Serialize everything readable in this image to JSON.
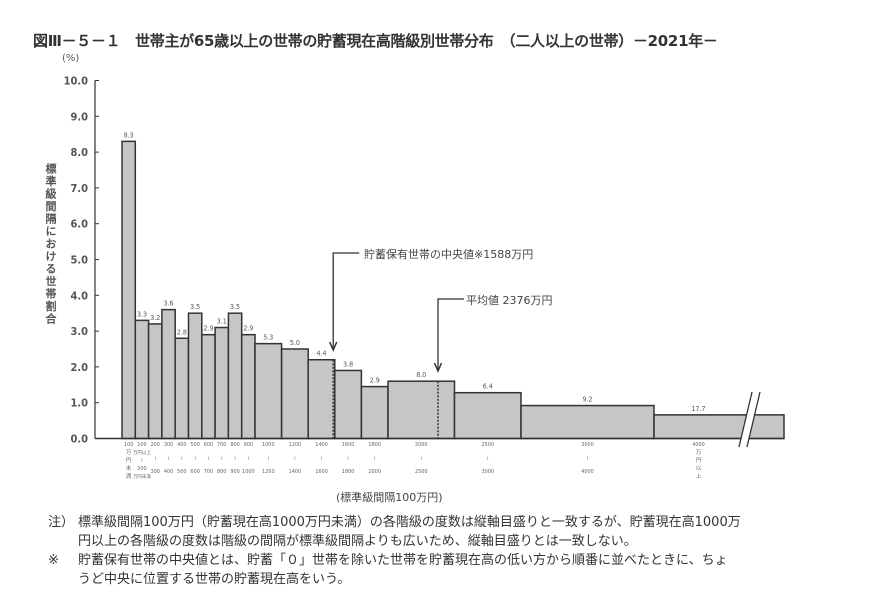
{
  "figure": {
    "title": "図Ⅲ－５－１　世帯主が65歳以上の世帯の貯蓄現在高階級別世帯分布　（二人以上の世帯）－2021年－",
    "y_unit": "(%)",
    "y_axis_label": "標準級間隔における世帯割合",
    "x_axis_label": "(標準級間隔100万円)",
    "annotations": {
      "median": "貯蓄保有世帯の中央値※1588万円",
      "mean": "平均値 2376万円"
    },
    "notes": [
      {
        "marker": "注）",
        "lines": [
          "標準級間隔100万円（貯蓄現在高1000万円未満）の各階級の度数は縦軸目盛りと一致するが、貯蓄現在高1000万",
          "円以上の各階級の度数は階級の間隔が標準級間隔よりも広いため、縦軸目盛りとは一致しない。"
        ]
      },
      {
        "marker": "※",
        "lines": [
          "貯蓄保有世帯の中央値とは、貯蓄「０」世帯を除いた世帯を貯蓄現在高の低い方から順番に並べたときに、ちょ",
          "うど中央に位置する世帯の貯蓄現在高をいう。"
        ]
      }
    ]
  },
  "chart_data": {
    "type": "bar",
    "title": "図Ⅲ－５－１　世帯主が65歳以上の世帯の貯蓄現在高階級別世帯分布　（二人以上の世帯）－2021年－",
    "xlabel": "(標準級間隔100万円)",
    "ylabel": "標準級間隔における世帯割合 (%)",
    "ylim": [
      0,
      10
    ],
    "yticks": [
      "0.0",
      "1.0",
      "2.0",
      "3.0",
      "4.0",
      "5.0",
      "6.0",
      "7.0",
      "8.0",
      "9.0",
      "10.0"
    ],
    "grid": false,
    "legend": null,
    "x_unit": "万円",
    "axis_break_after": 4000,
    "bins": [
      {
        "from": 0,
        "to": 100,
        "value": 8.3,
        "plotted_height": 8.3,
        "label": [
          "100",
          "万",
          "円",
          "未",
          "満"
        ]
      },
      {
        "from": 100,
        "to": 200,
        "value": 3.3,
        "plotted_height": 3.3,
        "label": [
          "100",
          "万円以上",
          "≀",
          "200",
          "万円未満"
        ]
      },
      {
        "from": 200,
        "to": 300,
        "value": 3.2,
        "plotted_height": 3.2,
        "label": [
          "200",
          "≀",
          "300"
        ]
      },
      {
        "from": 300,
        "to": 400,
        "value": 3.6,
        "plotted_height": 3.6,
        "label": [
          "300",
          "≀",
          "400"
        ]
      },
      {
        "from": 400,
        "to": 500,
        "value": 2.8,
        "plotted_height": 2.8,
        "label": [
          "400",
          "≀",
          "500"
        ]
      },
      {
        "from": 500,
        "to": 600,
        "value": 3.5,
        "plotted_height": 3.5,
        "label": [
          "500",
          "≀",
          "600"
        ]
      },
      {
        "from": 600,
        "to": 700,
        "value": 2.9,
        "plotted_height": 2.9,
        "label": [
          "600",
          "≀",
          "700"
        ]
      },
      {
        "from": 700,
        "to": 800,
        "value": 3.1,
        "plotted_height": 3.1,
        "label": [
          "700",
          "≀",
          "800"
        ]
      },
      {
        "from": 800,
        "to": 900,
        "value": 3.5,
        "plotted_height": 3.5,
        "label": [
          "800",
          "≀",
          "900"
        ]
      },
      {
        "from": 900,
        "to": 1000,
        "value": 2.9,
        "plotted_height": 2.9,
        "label": [
          "900",
          "≀",
          "1000"
        ]
      },
      {
        "from": 1000,
        "to": 1200,
        "value": 5.3,
        "plotted_height": 2.65,
        "label": [
          "1000",
          "≀",
          "1200"
        ]
      },
      {
        "from": 1200,
        "to": 1400,
        "value": 5.0,
        "plotted_height": 2.5,
        "label": [
          "1200",
          "≀",
          "1400"
        ]
      },
      {
        "from": 1400,
        "to": 1600,
        "value": 4.4,
        "plotted_height": 2.2,
        "label": [
          "1400",
          "≀",
          "1600"
        ]
      },
      {
        "from": 1600,
        "to": 1800,
        "value": 3.8,
        "plotted_height": 1.9,
        "label": [
          "1600",
          "≀",
          "1800"
        ]
      },
      {
        "from": 1800,
        "to": 2000,
        "value": 2.9,
        "plotted_height": 1.45,
        "label": [
          "1800",
          "≀",
          "2000"
        ]
      },
      {
        "from": 2000,
        "to": 2500,
        "value": 8.0,
        "plotted_height": 1.6,
        "label": [
          "2000",
          "≀",
          "2500"
        ]
      },
      {
        "from": 2500,
        "to": 3000,
        "value": 6.4,
        "plotted_height": 1.28,
        "label": [
          "2500",
          "≀",
          "3000"
        ]
      },
      {
        "from": 3000,
        "to": 4000,
        "value": 9.2,
        "plotted_height": 0.92,
        "label": [
          "3000",
          "≀",
          "4000"
        ]
      },
      {
        "from": 4000,
        "to": null,
        "value": 17.7,
        "plotted_height": 0.66,
        "label": [
          "4000",
          "万",
          "円",
          "以",
          "上"
        ]
      }
    ],
    "reference_lines": [
      {
        "name": "median",
        "value": 1588,
        "label": "貯蓄保有世帯の中央値※1588万円"
      },
      {
        "name": "mean",
        "value": 2376,
        "label": "平均値 2376万円"
      }
    ],
    "colors": {
      "bar_fill": "#c6c6c6",
      "bar_stroke": "#333333",
      "text": "#555555"
    }
  }
}
